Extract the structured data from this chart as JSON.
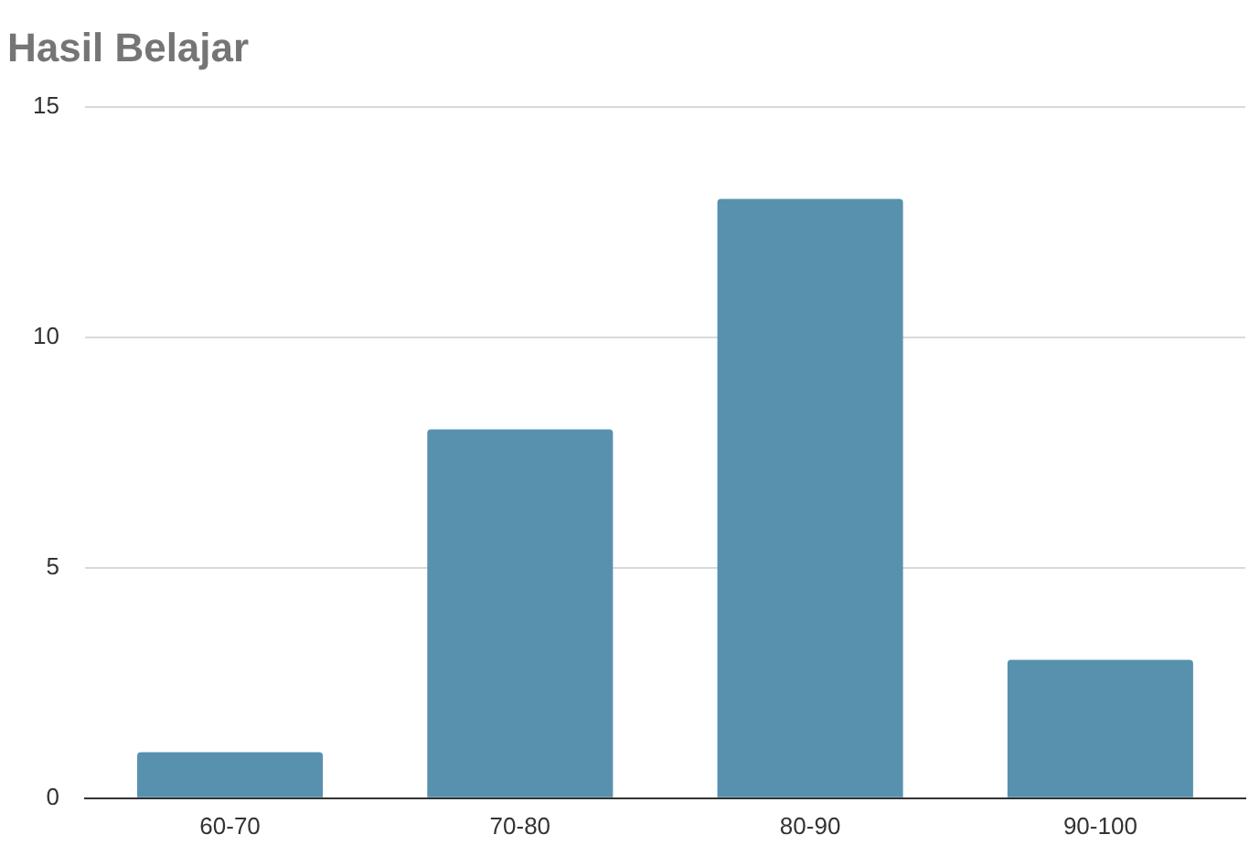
{
  "chart_data": {
    "type": "bar",
    "title": "Hasil Belajar",
    "categories": [
      "60-70",
      "70-80",
      "80-90",
      "90-100"
    ],
    "values": [
      1,
      8,
      13,
      3
    ],
    "color": "#5891ae",
    "ylim": [
      0,
      15
    ],
    "yticks": [
      0,
      5,
      10,
      15
    ],
    "grid": "y",
    "legend": false
  }
}
